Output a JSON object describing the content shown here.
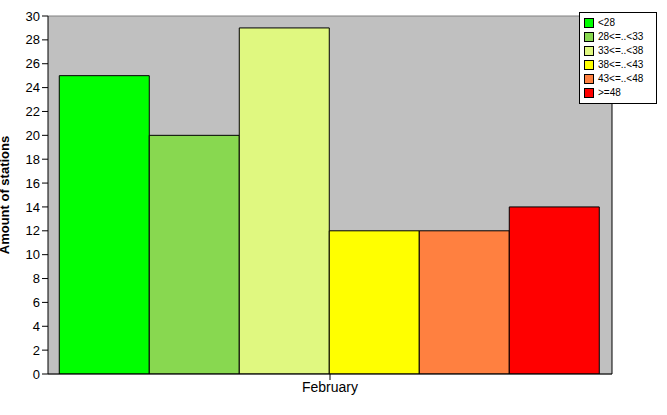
{
  "chart_data": {
    "type": "bar",
    "categories": [
      "February"
    ],
    "y_label": "Amount of stations",
    "series": [
      {
        "name": "<28",
        "color": "#00ff00",
        "values": [
          25
        ]
      },
      {
        "name": "28<=..<33",
        "color": "#88d850",
        "values": [
          20
        ]
      },
      {
        "name": "33<=..<38",
        "color": "#e0f880",
        "values": [
          29
        ]
      },
      {
        "name": "38<=..<43",
        "color": "#ffff00",
        "values": [
          12
        ]
      },
      {
        "name": "43<=..<48",
        "color": "#ff8040",
        "values": [
          12
        ]
      },
      {
        "name": ">=48",
        "color": "#ff0000",
        "values": [
          14
        ]
      }
    ],
    "ylim": [
      0,
      30
    ],
    "yticks": [
      0,
      2,
      4,
      6,
      8,
      10,
      12,
      14,
      16,
      18,
      20,
      22,
      24,
      26,
      28,
      30
    ],
    "grid": true,
    "legend": "upper right"
  }
}
